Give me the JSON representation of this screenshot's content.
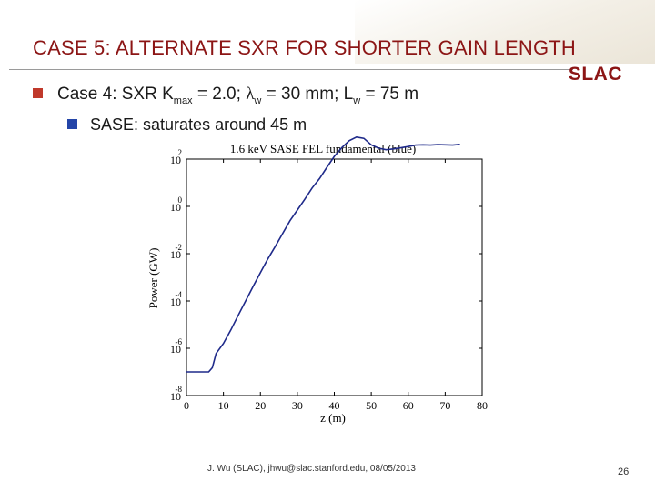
{
  "slide": {
    "title": "CASE 5: ALTERNATE SXR FOR SHORTER GAIN LENGTH",
    "logo_text": "SLAC",
    "bullet1": {
      "prefix": "Case 4: SXR K",
      "k_sub": "max",
      "middle": " = 2.0; ",
      "lambda_symbol": "λ",
      "lambda_sub": "w",
      "after_lambda": " = 30 mm; L",
      "l_sub": "w",
      "suffix": " = 75 m"
    },
    "bullet2": "SASE: saturates around 45 m",
    "footer": "J. Wu (SLAC), jhwu@slac.stanford.edu, 08/05/2013",
    "page_number": "26",
    "colors": {
      "title": "#8c1515",
      "bullet1": "#c0392b",
      "bullet2": "#2445a8",
      "series": "#1f2a8a"
    }
  },
  "chart_data": {
    "type": "line",
    "title": "1.6 keV SASE FEL fundamental (blue)",
    "xlabel": "z (m)",
    "ylabel": "Power (GW)",
    "xlim": [
      0,
      80
    ],
    "ylim_log10": [
      -8,
      2
    ],
    "yscale": "log",
    "x_ticks": [
      "0",
      "10",
      "20",
      "30",
      "40",
      "50",
      "60",
      "70",
      "80"
    ],
    "y_ticks": [
      {
        "base": "10",
        "exp": "2"
      },
      {
        "base": "10",
        "exp": "0"
      },
      {
        "base": "10",
        "exp": "-2"
      },
      {
        "base": "10",
        "exp": "-4"
      },
      {
        "base": "10",
        "exp": "-6"
      },
      {
        "base": "10",
        "exp": "-8"
      }
    ],
    "series": [
      {
        "color": "#1f2a8a",
        "x": [
          0,
          2,
          4,
          6,
          7,
          8,
          10,
          12,
          14,
          16,
          18,
          20,
          22,
          24,
          26,
          28,
          30,
          32,
          34,
          36,
          38,
          40,
          42,
          44,
          46,
          48,
          50,
          52,
          54,
          56,
          58,
          60,
          62,
          64,
          66,
          68,
          70,
          72,
          74
        ],
        "y": [
          1e-07,
          1e-07,
          1e-07,
          1e-07,
          1.5e-07,
          6e-07,
          1.6e-06,
          6e-06,
          2.5e-05,
          0.0001,
          0.0004,
          0.0016,
          0.006,
          0.02,
          0.07,
          0.25,
          0.7,
          2.0,
          6.0,
          15,
          45,
          130,
          300,
          600,
          850,
          750,
          400,
          290,
          250,
          270,
          300,
          340,
          390,
          400,
          390,
          410,
          400,
          390,
          420
        ]
      }
    ]
  }
}
